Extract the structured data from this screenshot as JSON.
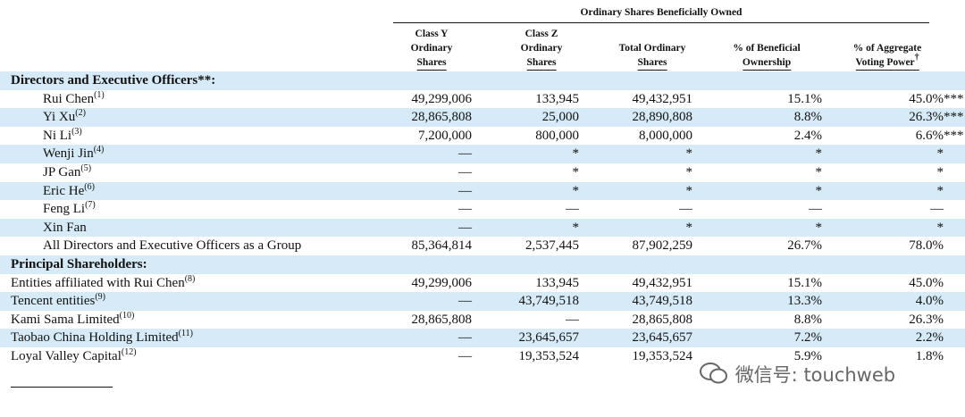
{
  "header": {
    "group_title": "Ordinary Shares Beneficially Owned",
    "columns": [
      {
        "lines": [
          "Class Y",
          "Ordinary",
          "Shares"
        ]
      },
      {
        "lines": [
          "Class Z",
          "Ordinary",
          "Shares"
        ]
      },
      {
        "lines": [
          "Total Ordinary",
          "Shares"
        ]
      },
      {
        "lines": [
          "% of Beneficial",
          "Ownership"
        ]
      },
      {
        "lines": [
          "% of Aggregate",
          "Voting Power"
        ],
        "mark": "†"
      }
    ]
  },
  "rows": [
    {
      "section": "Directors and Executive Officers**:"
    },
    {
      "name": "Rui Chen",
      "note": "(1)",
      "cells": [
        "49,299,006",
        "133,945",
        "49,432,951",
        "15.1%",
        "45.0%"
      ],
      "suffix": "***"
    },
    {
      "name": "Yi Xu",
      "note": "(2)",
      "cells": [
        "28,865,808",
        "25,000",
        "28,890,808",
        "8.8%",
        "26.3%"
      ],
      "suffix": "***"
    },
    {
      "name": "Ni Li",
      "note": "(3)",
      "cells": [
        "7,200,000",
        "800,000",
        "8,000,000",
        "2.4%",
        "6.6%"
      ],
      "suffix": "***"
    },
    {
      "name": "Wenji Jin",
      "note": "(4)",
      "cells": [
        "—",
        "*",
        "*",
        "*",
        "*"
      ]
    },
    {
      "name": "JP Gan",
      "note": "(5)",
      "cells": [
        "—",
        "*",
        "*",
        "*",
        "*"
      ]
    },
    {
      "name": "Eric He",
      "note": "(6)",
      "cells": [
        "—",
        "*",
        "*",
        "*",
        "*"
      ]
    },
    {
      "name": "Feng Li",
      "note": "(7)",
      "cells": [
        "—",
        "—",
        "—",
        "—",
        "—"
      ]
    },
    {
      "name": "Xin Fan",
      "cells": [
        "—",
        "*",
        "*",
        "*",
        "*"
      ]
    },
    {
      "name": "All Directors and Executive Officers as a Group",
      "cells": [
        "85,364,814",
        "2,537,445",
        "87,902,259",
        "26.7%",
        "78.0%"
      ]
    },
    {
      "section": "Principal Shareholders:"
    },
    {
      "name": "Entities affiliated with Rui Chen",
      "note": "(8)",
      "flush": true,
      "cells": [
        "49,299,006",
        "133,945",
        "49,432,951",
        "15.1%",
        "45.0%"
      ]
    },
    {
      "name": "Tencent entities",
      "note": "(9)",
      "flush": true,
      "cells": [
        "—",
        "43,749,518",
        "43,749,518",
        "13.3%",
        "4.0%"
      ]
    },
    {
      "name": "Kami Sama Limited",
      "note": "(10)",
      "flush": true,
      "cells": [
        "28,865,808",
        "—",
        "28,865,808",
        "8.8%",
        "26.3%"
      ]
    },
    {
      "name": "Taobao China Holding Limited",
      "note": "(11)",
      "flush": true,
      "cells": [
        "—",
        "23,645,657",
        "23,645,657",
        "7.2%",
        "2.2%"
      ]
    },
    {
      "name": "Loyal Valley Capital",
      "note": "(12)",
      "flush": true,
      "cells": [
        "—",
        "19,353,524",
        "19,353,524",
        "5.9%",
        "1.8%"
      ]
    }
  ],
  "watermark": "微信号: touchweb"
}
